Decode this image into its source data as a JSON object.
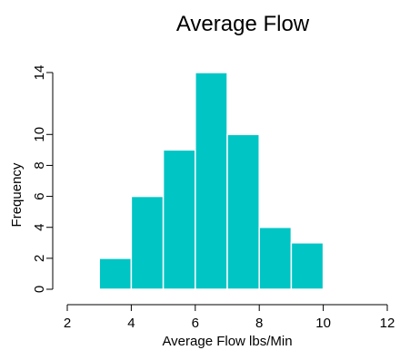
{
  "chart_data": {
    "type": "histogram",
    "title": "Average Flow",
    "xlabel": "Average Flow lbs/Min",
    "ylabel": "Frequency",
    "bins": [
      {
        "x0": 3,
        "x1": 4,
        "count": 2
      },
      {
        "x0": 4,
        "x1": 5,
        "count": 6
      },
      {
        "x0": 5,
        "x1": 6,
        "count": 9
      },
      {
        "x0": 6,
        "x1": 7,
        "count": 14
      },
      {
        "x0": 7,
        "x1": 8,
        "count": 10
      },
      {
        "x0": 8,
        "x1": 9,
        "count": 4
      },
      {
        "x0": 9,
        "x1": 10,
        "count": 3
      }
    ],
    "xlim": [
      2,
      12
    ],
    "ylim": [
      0,
      14
    ],
    "x_ticks": [
      2,
      4,
      6,
      8,
      10,
      12
    ],
    "y_ticks": [
      0,
      2,
      4,
      6,
      8,
      10,
      14
    ],
    "x_tick_labels": [
      "2",
      "4",
      "6",
      "8",
      "10",
      "12"
    ],
    "y_tick_labels": [
      "0",
      "2",
      "4",
      "6",
      "8",
      "10",
      "14"
    ],
    "grid": false,
    "bar_color": "#00c5c5",
    "bar_edge_color": "#ffffff"
  }
}
